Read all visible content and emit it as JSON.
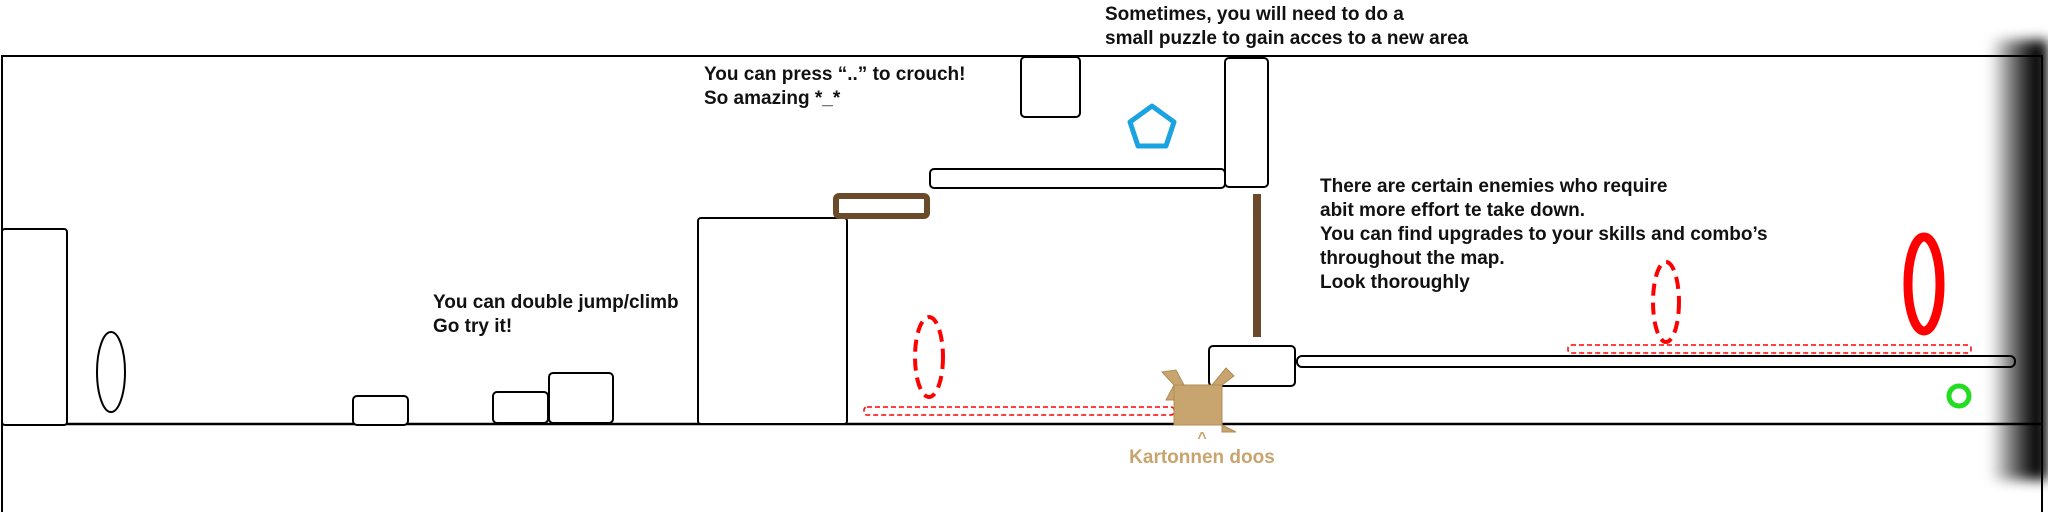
{
  "tips": {
    "crouch": {
      "line1": "You can press “..” to crouch!",
      "line2": "So amazing *_*"
    },
    "puzzle": {
      "line1": "Sometimes, you will need to do a",
      "line2": "small puzzle to gain acces to a new area"
    },
    "double_jump": {
      "line1": "You can double jump/climb",
      "line2": "Go try it!"
    },
    "enemies": {
      "line1": "There are certain enemies who require",
      "line2": "abit more effort te take down.",
      "line3": "You can find upgrades to your skills and combo’s",
      "line4": "throughout the map.",
      "line5": "Look thoroughly"
    }
  },
  "box_label": {
    "arrow": "^",
    "text": "Kartonnen doos"
  },
  "colors": {
    "outline": "#000000",
    "wood": "#6b4a2b",
    "cardboard": "#c8a46e",
    "enemy_red": "#ff0000",
    "collectible_blue": "#1aa3e0",
    "goal_green": "#22dd22",
    "caption_tan": "#c8a46e"
  },
  "icons": {
    "pentagon": "pentagon-collectible-icon",
    "goal": "green-ring-icon",
    "box": "cardboard-box-icon"
  }
}
